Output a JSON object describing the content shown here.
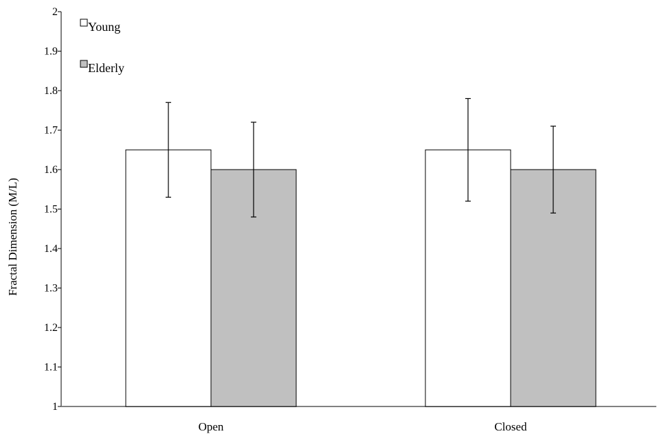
{
  "chart_data": {
    "type": "bar",
    "ylabel": "Fractal Dimension (M/L)",
    "xlabel": "",
    "ylim": [
      1,
      2
    ],
    "yticks": [
      "1",
      "1.1",
      "1.2",
      "1.3",
      "1.4",
      "1.5",
      "1.6",
      "1.7",
      "1.8",
      "1.9",
      "2"
    ],
    "categories": [
      "Open",
      "Closed"
    ],
    "series": [
      {
        "name": "Young",
        "color": "#ffffff",
        "values": [
          1.65,
          1.65
        ],
        "error_low": [
          1.53,
          1.52
        ],
        "error_high": [
          1.77,
          1.78
        ]
      },
      {
        "name": "Elderly",
        "color": "#c0c0c0",
        "values": [
          1.6,
          1.6
        ],
        "error_low": [
          1.48,
          1.49
        ],
        "error_high": [
          1.72,
          1.71
        ]
      }
    ],
    "legend_position": "top-left",
    "grid": false
  }
}
